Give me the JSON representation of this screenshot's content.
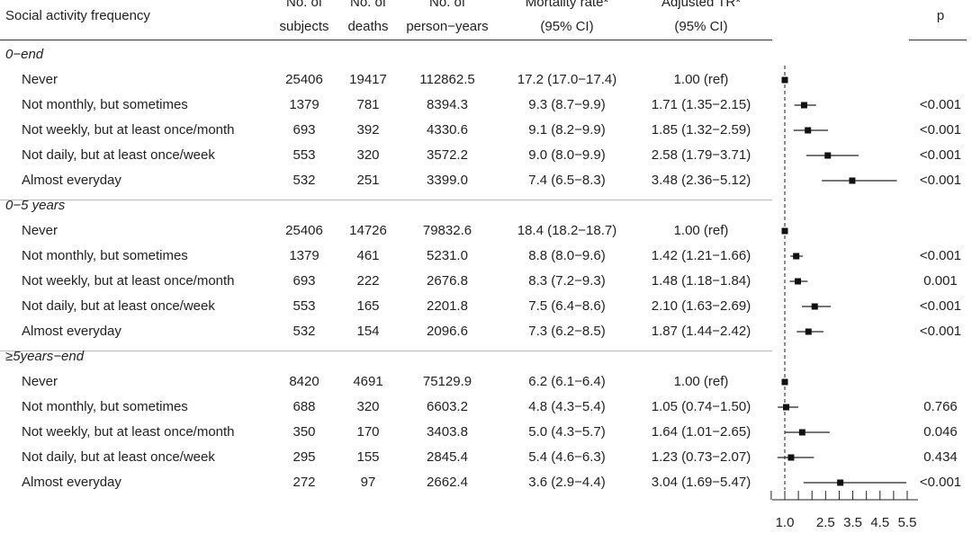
{
  "headers": {
    "activity": "Social activity frequency",
    "subjects": [
      "No. of",
      "subjects"
    ],
    "deaths": [
      "No. of",
      "deaths"
    ],
    "person_years": [
      "No. of",
      "person−years"
    ],
    "mortality": [
      "Mortality rate*",
      "(95% CI)"
    ],
    "adjusted": [
      "Adjusted TR*",
      "(95% CI)"
    ],
    "p": "p"
  },
  "axis_ticks": [
    "1.0",
    "2.5",
    "3.5",
    "4.5",
    "5.5"
  ],
  "groups": [
    {
      "label": "0−end",
      "rows": [
        {
          "label": "Never",
          "subjects": "25406",
          "deaths": "19417",
          "py": "112862.5",
          "rate": "17.2 (17.0−17.4)",
          "tr": "1.00 (ref)",
          "p": ""
        },
        {
          "label": "Not monthly, but sometimes",
          "subjects": "1379",
          "deaths": "781",
          "py": "8394.3",
          "rate": "9.3 (8.7−9.9)",
          "tr": "1.71 (1.35−2.15)",
          "p": "<0.001"
        },
        {
          "label": "Not weekly, but at least once/month",
          "subjects": "693",
          "deaths": "392",
          "py": "4330.6",
          "rate": "9.1 (8.2−9.9)",
          "tr": "1.85 (1.32−2.59)",
          "p": "<0.001"
        },
        {
          "label": "Not daily, but at least once/week",
          "subjects": "553",
          "deaths": "320",
          "py": "3572.2",
          "rate": "9.0 (8.0−9.9)",
          "tr": "2.58 (1.79−3.71)",
          "p": "<0.001"
        },
        {
          "label": "Almost everyday",
          "subjects": "532",
          "deaths": "251",
          "py": "3399.0",
          "rate": "7.4 (6.5−8.3)",
          "tr": "3.48 (2.36−5.12)",
          "p": "<0.001"
        }
      ]
    },
    {
      "label": "0−5 years",
      "rows": [
        {
          "label": "Never",
          "subjects": "25406",
          "deaths": "14726",
          "py": "79832.6",
          "rate": "18.4 (18.2−18.7)",
          "tr": "1.00 (ref)",
          "p": ""
        },
        {
          "label": "Not monthly, but sometimes",
          "subjects": "1379",
          "deaths": "461",
          "py": "5231.0",
          "rate": "8.8 (8.0−9.6)",
          "tr": "1.42 (1.21−1.66)",
          "p": "<0.001"
        },
        {
          "label": "Not weekly, but at least once/month",
          "subjects": "693",
          "deaths": "222",
          "py": "2676.8",
          "rate": "8.3 (7.2−9.3)",
          "tr": "1.48 (1.18−1.84)",
          "p": "0.001"
        },
        {
          "label": "Not daily, but at least once/week",
          "subjects": "553",
          "deaths": "165",
          "py": "2201.8",
          "rate": "7.5 (6.4−8.6)",
          "tr": "2.10 (1.63−2.69)",
          "p": "<0.001"
        },
        {
          "label": "Almost everyday",
          "subjects": "532",
          "deaths": "154",
          "py": "2096.6",
          "rate": "7.3 (6.2−8.5)",
          "tr": "1.87 (1.44−2.42)",
          "p": "<0.001"
        }
      ]
    },
    {
      "label": "≥5years−end",
      "rows": [
        {
          "label": "Never",
          "subjects": "8420",
          "deaths": "4691",
          "py": "75129.9",
          "rate": "6.2 (6.1−6.4)",
          "tr": "1.00 (ref)",
          "p": ""
        },
        {
          "label": "Not monthly, but sometimes",
          "subjects": "688",
          "deaths": "320",
          "py": "6603.2",
          "rate": "4.8 (4.3−5.4)",
          "tr": "1.05 (0.74−1.50)",
          "p": "0.766"
        },
        {
          "label": "Not weekly, but at least once/month",
          "subjects": "350",
          "deaths": "170",
          "py": "3403.8",
          "rate": "5.0 (4.3−5.7)",
          "tr": "1.64 (1.01−2.65)",
          "p": "0.046"
        },
        {
          "label": "Not daily, but at least once/week",
          "subjects": "295",
          "deaths": "155",
          "py": "2845.4",
          "rate": "5.4 (4.6−6.3)",
          "tr": "1.23 (0.73−2.07)",
          "p": "0.434"
        },
        {
          "label": "Almost everyday",
          "subjects": "272",
          "deaths": "97",
          "py": "2662.4",
          "rate": "3.6 (2.9−4.4)",
          "tr": "3.04 (1.69−5.47)",
          "p": "<0.001"
        }
      ]
    }
  ],
  "chart_data": {
    "type": "forest",
    "reference_line": 1.0,
    "xlim": [
      1.0,
      5.5
    ],
    "x_ticks": [
      1.0,
      2.5,
      3.5,
      4.5,
      5.5
    ],
    "series": [
      {
        "values": [
          1.0,
          1.71,
          1.85,
          2.58,
          3.48
        ],
        "lower": [
          1.0,
          1.35,
          1.32,
          1.79,
          2.36
        ],
        "upper": [
          1.0,
          2.15,
          2.59,
          3.71,
          5.12
        ]
      },
      {
        "values": [
          1.0,
          1.42,
          1.48,
          2.1,
          1.87
        ],
        "lower": [
          1.0,
          1.21,
          1.18,
          1.63,
          1.44
        ],
        "upper": [
          1.0,
          1.66,
          1.84,
          2.69,
          2.42
        ]
      },
      {
        "values": [
          1.0,
          1.05,
          1.64,
          1.23,
          3.04
        ],
        "lower": [
          1.0,
          0.74,
          1.01,
          0.73,
          1.69
        ],
        "upper": [
          1.0,
          1.5,
          2.65,
          2.07,
          5.47
        ]
      }
    ]
  }
}
